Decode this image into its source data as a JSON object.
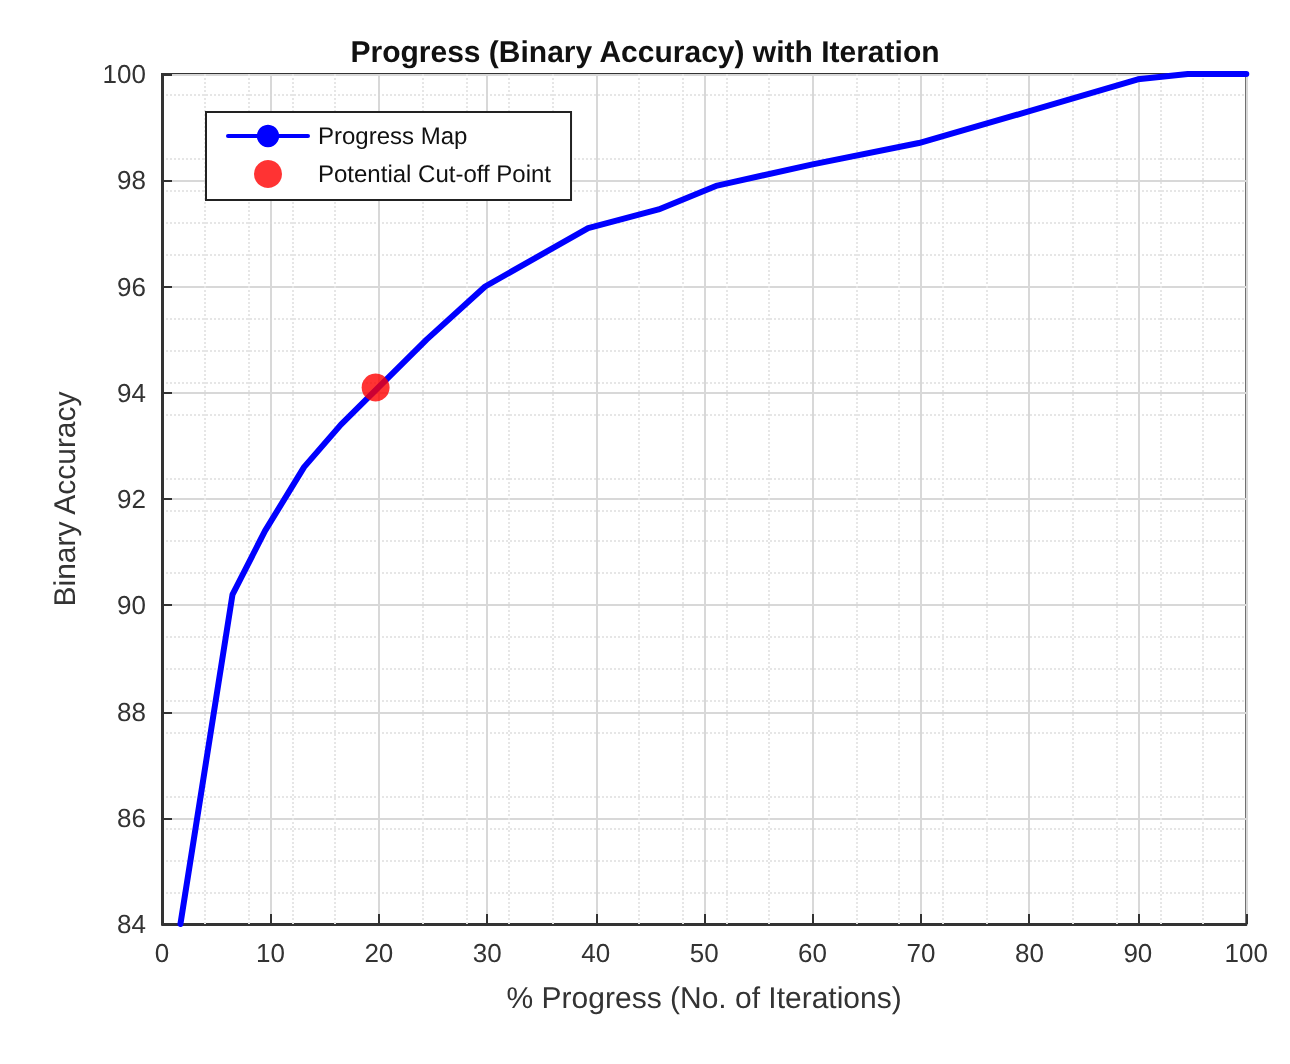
{
  "chart_data": {
    "type": "line",
    "title": "Progress (Binary Accuracy) with Iteration",
    "xlabel": "% Progress (No. of Iterations)",
    "ylabel": "Binary Accuracy",
    "series": [
      {
        "name": "Progress Map",
        "color": "#0000ff",
        "x": [
          1.7,
          6.5,
          9.5,
          13.1,
          16.5,
          24.4,
          29.8,
          39.3,
          45.8,
          51.2,
          60,
          69.8,
          80,
          90,
          94.6,
          100
        ],
        "values": [
          84,
          90.2,
          91.4,
          92.6,
          93.4,
          95.0,
          96.0,
          97.1,
          97.45,
          97.9,
          98.3,
          98.7,
          99.3,
          99.9,
          100,
          100
        ],
        "marker": "none"
      },
      {
        "name": "Potential Cut-off Point",
        "type": "scatter",
        "color": "#ff0000",
        "x": [
          19.7
        ],
        "values": [
          94.1
        ],
        "marker": "circle"
      }
    ],
    "xlim": [
      0,
      100
    ],
    "xticks": [
      0,
      10,
      20,
      30,
      40,
      50,
      60,
      70,
      80,
      90,
      100
    ],
    "ylim": [
      84,
      100
    ],
    "yticks": [
      84,
      86,
      88,
      90,
      92,
      94,
      96,
      98,
      100
    ],
    "grid": true,
    "legend": "top left",
    "line_style": "solid"
  }
}
